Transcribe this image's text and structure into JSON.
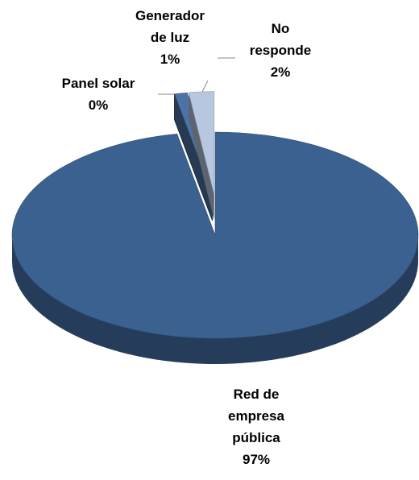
{
  "chart_data": {
    "type": "pie",
    "categories": [
      "Red de empresa pública",
      "Panel solar",
      "Generador de luz",
      "No responde"
    ],
    "values": [
      97,
      0,
      1,
      2
    ],
    "value_labels": [
      "97%",
      "0%",
      "1%",
      "2%"
    ],
    "colors": [
      "#3b6191",
      "#1f3b63",
      "#4d73a6",
      "#b7c7e0"
    ]
  }
}
